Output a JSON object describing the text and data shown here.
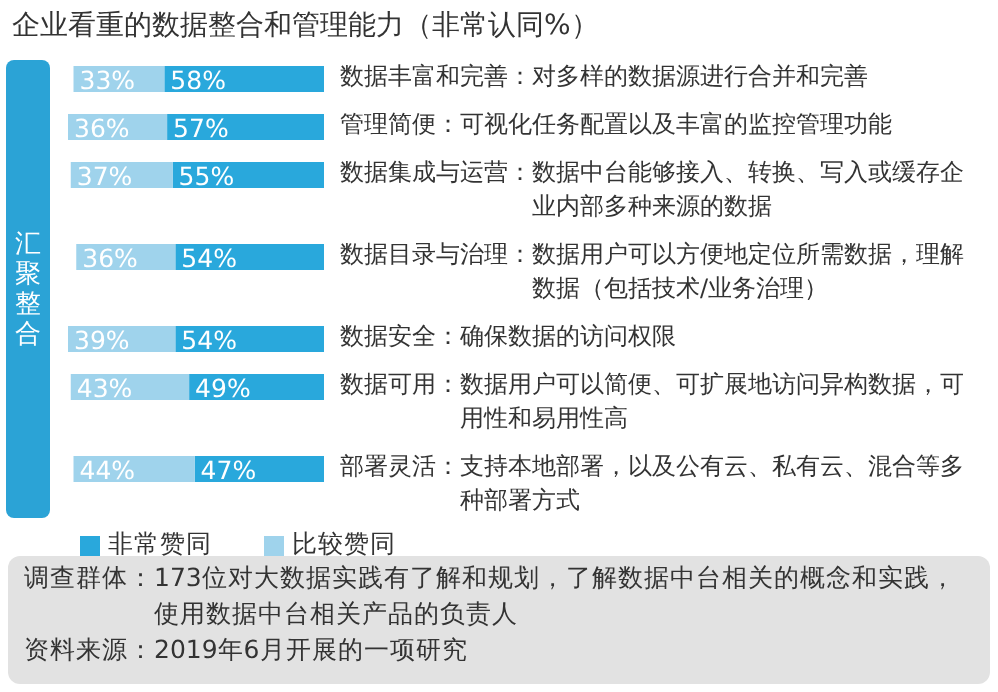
{
  "chart_data": {
    "type": "bar",
    "orientation": "horizontal",
    "stacked": true,
    "legend": "bottom",
    "title": "企业看重的数据整合和管理能力（非常认同%）",
    "ylabel": "汇聚整合",
    "categories": [
      "数据丰富和完善：对多样的数据源进行合并和完善",
      "管理简便：可视化任务配置以及丰富的监控管理功能",
      "数据集成与运营：数据中台能够接入、转换、写入或缓存企业内部多种来源的数据",
      "数据目录与治理：数据用户可以方便地定位所需数据，理解数据（包括技术/业务治理）",
      "数据安全：确保数据的访问权限",
      "数据可用：数据用户可以简便、可扩展地访问异构数据，可用性和易用性高",
      "部署灵活：支持本地部署，以及公有云、私有云、混合等多种部署方式"
    ],
    "series": [
      {
        "name": "非常赞同",
        "color": "#29a8dc",
        "values": [
          58,
          57,
          55,
          54,
          54,
          49,
          47
        ],
        "value_labels": [
          "58%",
          "57%",
          "55%",
          "54%",
          "54%",
          "49%",
          "47%"
        ]
      },
      {
        "name": "比较赞同",
        "color": "#9fd3ec",
        "values": [
          33,
          36,
          37,
          36,
          39,
          43,
          44
        ],
        "value_labels": [
          "33%",
          "36%",
          "37%",
          "36%",
          "39%",
          "43%",
          "44%"
        ]
      }
    ],
    "annotations": [
      "调查群体：173位对大数据实践有了解和规划，了解数据中台相关的概念和实践，使用数据中台相关产品的负责人",
      "资料来源：2019年6月开展的一项研究"
    ]
  }
}
